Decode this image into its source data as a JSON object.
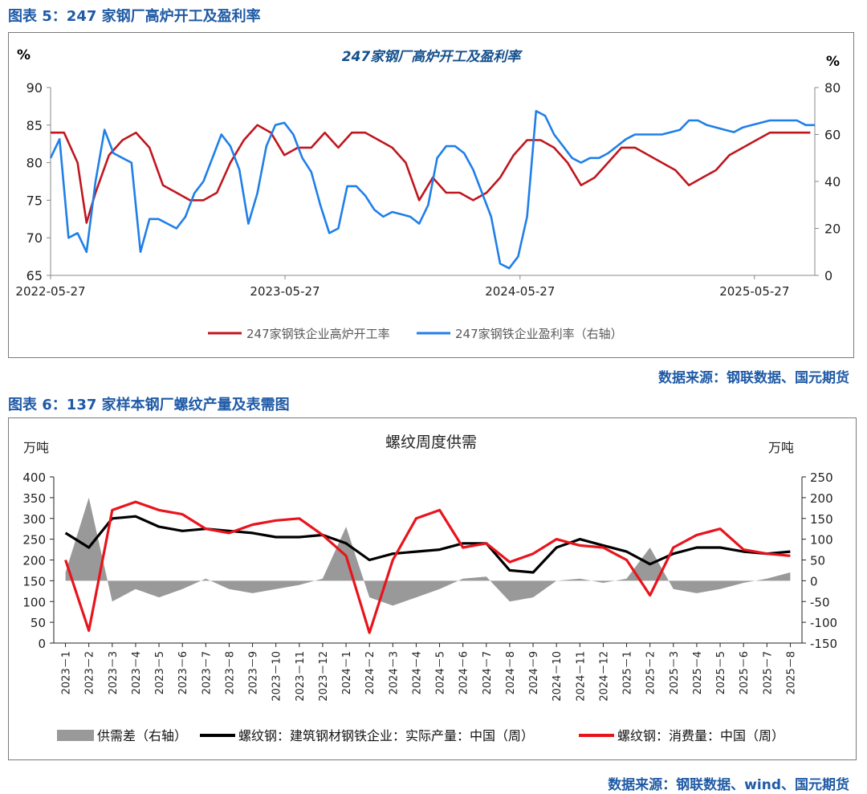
{
  "figure5": {
    "caption": "图表 5：247 家钢厂高炉开工及盈利率",
    "source": "数据来源：钢联数据、国元期货",
    "chart_data": {
      "type": "line",
      "title": "247家钢厂高炉开工及盈利率",
      "ylabel_left": "%",
      "ylabel_right": "%",
      "ylim_left": [
        65,
        90
      ],
      "yticks_left": [
        65,
        70,
        75,
        80,
        85,
        90
      ],
      "ylim_right": [
        0,
        80
      ],
      "yticks_right": [
        0,
        20,
        40,
        60,
        80
      ],
      "xlim": [
        "2022-05-27",
        "2025-08-29"
      ],
      "xticks": [
        "2022-05-27",
        "2023-05-27",
        "2024-05-27",
        "2025-05-27"
      ],
      "legend_position": "bottom",
      "grid": false,
      "series": [
        {
          "name": "247家钢铁企业高炉开工率",
          "axis": "left",
          "color": "#c0161e",
          "x": [
            "2022-05-27",
            "2022-06-17",
            "2022-07-08",
            "2022-07-22",
            "2022-08-05",
            "2022-08-26",
            "2022-09-16",
            "2022-10-07",
            "2022-10-28",
            "2022-11-18",
            "2022-12-09",
            "2022-12-30",
            "2023-01-20",
            "2023-02-10",
            "2023-03-03",
            "2023-03-24",
            "2023-04-14",
            "2023-05-05",
            "2023-05-26",
            "2023-06-16",
            "2023-07-07",
            "2023-07-28",
            "2023-08-18",
            "2023-09-08",
            "2023-09-29",
            "2023-10-20",
            "2023-11-10",
            "2023-12-01",
            "2023-12-22",
            "2024-01-12",
            "2024-02-02",
            "2024-02-23",
            "2024-03-15",
            "2024-04-05",
            "2024-04-26",
            "2024-05-17",
            "2024-06-07",
            "2024-06-28",
            "2024-07-19",
            "2024-08-09",
            "2024-08-30",
            "2024-09-20",
            "2024-10-11",
            "2024-11-01",
            "2024-11-22",
            "2024-12-13",
            "2025-01-03",
            "2025-01-24",
            "2025-02-14",
            "2025-03-07",
            "2025-03-28",
            "2025-04-18",
            "2025-05-09",
            "2025-05-30",
            "2025-06-20",
            "2025-07-11",
            "2025-08-01",
            "2025-08-22"
          ],
          "values": [
            84,
            84,
            80,
            72,
            76,
            81,
            83,
            84,
            82,
            77,
            76,
            75,
            75,
            76,
            80,
            83,
            85,
            84,
            81,
            82,
            82,
            84,
            82,
            84,
            84,
            83,
            82,
            80,
            75,
            78,
            76,
            76,
            75,
            76,
            78,
            81,
            83,
            83,
            82,
            80,
            77,
            78,
            80,
            82,
            82,
            81,
            80,
            79,
            77,
            78,
            79,
            81,
            82,
            83,
            84,
            84,
            84,
            84
          ]
        },
        {
          "name": "247家钢铁企业盈利率（右轴）",
          "axis": "right",
          "color": "#1f7fe8",
          "x": [
            "2022-05-27",
            "2022-06-10",
            "2022-06-24",
            "2022-07-08",
            "2022-07-22",
            "2022-08-05",
            "2022-08-19",
            "2022-09-02",
            "2022-09-16",
            "2022-09-30",
            "2022-10-14",
            "2022-10-28",
            "2022-11-11",
            "2022-11-25",
            "2022-12-09",
            "2022-12-23",
            "2023-01-06",
            "2023-01-20",
            "2023-02-03",
            "2023-02-17",
            "2023-03-03",
            "2023-03-17",
            "2023-03-31",
            "2023-04-14",
            "2023-04-28",
            "2023-05-12",
            "2023-05-26",
            "2023-06-09",
            "2023-06-23",
            "2023-07-07",
            "2023-07-21",
            "2023-08-04",
            "2023-08-18",
            "2023-09-01",
            "2023-09-15",
            "2023-09-29",
            "2023-10-13",
            "2023-10-27",
            "2023-11-10",
            "2023-11-24",
            "2023-12-08",
            "2023-12-22",
            "2024-01-05",
            "2024-01-19",
            "2024-02-02",
            "2024-02-16",
            "2024-03-01",
            "2024-03-15",
            "2024-03-29",
            "2024-04-12",
            "2024-04-26",
            "2024-05-10",
            "2024-05-24",
            "2024-06-07",
            "2024-06-21",
            "2024-07-05",
            "2024-07-19",
            "2024-08-02",
            "2024-08-16",
            "2024-08-30",
            "2024-09-13",
            "2024-09-27",
            "2024-10-11",
            "2024-10-25",
            "2024-11-08",
            "2024-11-22",
            "2024-12-06",
            "2024-12-20",
            "2025-01-03",
            "2025-01-17",
            "2025-01-31",
            "2025-02-14",
            "2025-02-28",
            "2025-03-14",
            "2025-03-28",
            "2025-04-11",
            "2025-04-25",
            "2025-05-09",
            "2025-05-23",
            "2025-06-06",
            "2025-06-20",
            "2025-07-04",
            "2025-07-18",
            "2025-08-01",
            "2025-08-15",
            "2025-08-29"
          ],
          "values": [
            50,
            58,
            16,
            18,
            10,
            40,
            62,
            52,
            50,
            48,
            10,
            24,
            24,
            22,
            20,
            25,
            35,
            40,
            50,
            60,
            55,
            45,
            22,
            35,
            55,
            64,
            65,
            60,
            50,
            44,
            30,
            18,
            20,
            38,
            38,
            34,
            28,
            25,
            27,
            26,
            25,
            22,
            30,
            50,
            55,
            55,
            52,
            45,
            35,
            25,
            5,
            3,
            8,
            25,
            70,
            68,
            60,
            55,
            50,
            48,
            50,
            50,
            52,
            55,
            58,
            60,
            60,
            60,
            60,
            61,
            62,
            66,
            66,
            64,
            63,
            62,
            61,
            63,
            64,
            65,
            66,
            66,
            66,
            66,
            64,
            64
          ]
        }
      ]
    }
  },
  "figure6": {
    "caption": "图表 6：137 家样本钢厂螺纹产量及表需图",
    "source": "数据来源：钢联数据、wind、国元期货",
    "chart_data": {
      "type": "line",
      "title": "螺纹周度供需",
      "ylabel_left": "万吨",
      "ylabel_right": "万吨",
      "ylim_left": [
        0,
        400
      ],
      "yticks_left": [
        0,
        50,
        100,
        150,
        200,
        250,
        300,
        350,
        400
      ],
      "ylim_right": [
        -150,
        250
      ],
      "yticks_right": [
        -150,
        -100,
        -50,
        0,
        50,
        100,
        150,
        200,
        250
      ],
      "categories": [
        "2023－1",
        "2023－2",
        "2023－3",
        "2023－4",
        "2023－5",
        "2023－6",
        "2023－7",
        "2023－8",
        "2023－9",
        "2023－10",
        "2023－11",
        "2023－12",
        "2024－1",
        "2024－2",
        "2024－3",
        "2024－4",
        "2024－5",
        "2024－6",
        "2024－7",
        "2024－8",
        "2024－9",
        "2024－10",
        "2024－11",
        "2024－12",
        "2025－1",
        "2025－2",
        "2025－3",
        "2025－4",
        "2025－5",
        "2025－6",
        "2025－7",
        "2025－8"
      ],
      "legend_position": "bottom",
      "grid": false,
      "series": [
        {
          "name": "供需差（右轴）",
          "axis": "right",
          "type": "area",
          "color": "#999999",
          "values": [
            20,
            200,
            -50,
            -20,
            -40,
            -20,
            5,
            -20,
            -30,
            -20,
            -10,
            5,
            130,
            -40,
            -60,
            -40,
            -20,
            5,
            10,
            -50,
            -40,
            0,
            5,
            -5,
            5,
            80,
            -20,
            -30,
            -20,
            -5,
            5,
            20
          ]
        },
        {
          "name": "螺纹钢：建筑钢材钢铁企业：实际产量：中国（周）",
          "axis": "left",
          "color": "#000000",
          "values": [
            265,
            230,
            300,
            305,
            280,
            270,
            275,
            270,
            265,
            255,
            255,
            260,
            240,
            200,
            215,
            220,
            225,
            240,
            240,
            175,
            170,
            230,
            250,
            235,
            220,
            190,
            215,
            230,
            230,
            220,
            215,
            220
          ]
        },
        {
          "name": "螺纹钢：消费量：中国（周）",
          "axis": "left",
          "color": "#e8141c",
          "values": [
            200,
            30,
            320,
            340,
            320,
            310,
            275,
            265,
            285,
            295,
            300,
            260,
            210,
            25,
            200,
            300,
            320,
            230,
            240,
            195,
            215,
            250,
            235,
            230,
            200,
            115,
            230,
            260,
            275,
            225,
            215,
            210
          ]
        }
      ]
    }
  }
}
